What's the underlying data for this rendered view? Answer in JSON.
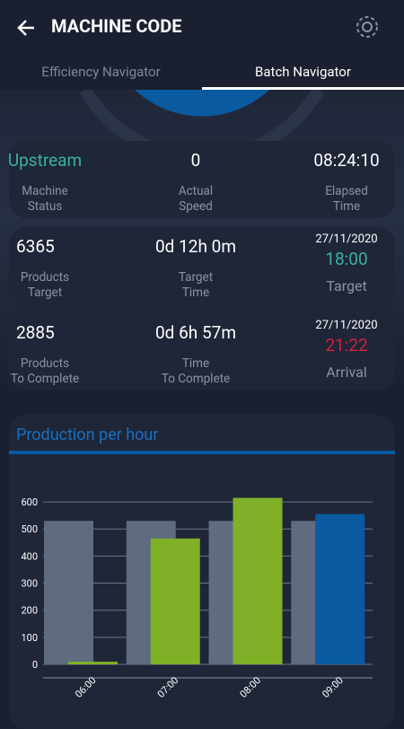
{
  "header": {
    "title": "MACHINE CODE"
  },
  "tabs": [
    "Efficiency Navigator",
    "Batch Navigator"
  ],
  "cards": [
    {
      "items": [
        {
          "value": "Upstream",
          "label": [
            "Machine",
            "Status"
          ]
        },
        {
          "value": 0,
          "label": [
            "Actual",
            "Speed"
          ]
        },
        {
          "value": "08:24:10",
          "label": [
            "Elapsed",
            "Time"
          ]
        }
      ]
    },
    {
      "items": [
        {
          "value": 6365,
          "label": [
            "Products",
            "Target"
          ]
        },
        {
          "value": "0d 12h 0m",
          "label": [
            "Target",
            "Time"
          ]
        }
      ],
      "date": "27/11/2020",
      "time": "18:00",
      "caption": "Target"
    },
    {
      "items": [
        {
          "value": 2885,
          "label": [
            "Products",
            "To Complete"
          ]
        },
        {
          "value": "0d 6h 57m",
          "label": [
            "Time",
            "To Complete"
          ]
        }
      ],
      "date": "27/11/2020",
      "time": "21:22",
      "caption": "Arrival"
    }
  ],
  "chart_data": {
    "type": "bar",
    "title": "Production per hour",
    "categories": [
      "06:00",
      "07:00",
      "08:00",
      "09:00"
    ],
    "series": [
      {
        "color": "#5f6b7e",
        "values": [
          530,
          530,
          530,
          530
        ]
      },
      {
        "colors": [
          "#7fb027",
          "#7fb027",
          "#7fb027",
          "#0a5aa0"
        ],
        "values": [
          10,
          465,
          615,
          555
        ]
      }
    ],
    "ylim": [
      0,
      650
    ],
    "yticks": [
      0,
      100,
      200,
      300,
      400,
      500,
      600
    ],
    "grid": true
  }
}
